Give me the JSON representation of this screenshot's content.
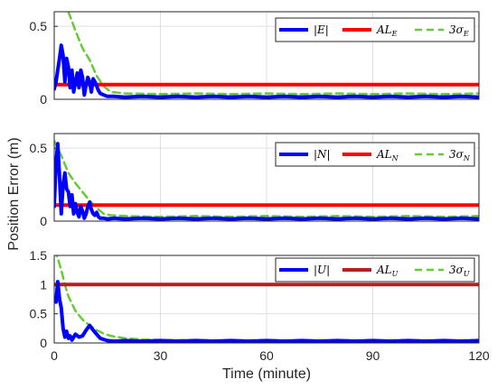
{
  "chart_data": {
    "type": "line",
    "ylabel": "Position Error (m)",
    "xlabel": "Time (minute)",
    "xlim": [
      0,
      120
    ],
    "xticks": [
      0,
      30,
      60,
      90,
      120
    ],
    "grid": true,
    "legend_position": "top-right",
    "colors": {
      "error": "#0000ff",
      "alert_limit": "#ff0000",
      "alert_limit_u": "#b22222",
      "sigma": "#66cc33"
    },
    "panels": [
      {
        "axis": "E",
        "ylim": [
          0,
          0.6
        ],
        "yticks": [
          0,
          0.5
        ],
        "ytick_labels": [
          "0",
          "0.5"
        ],
        "legend": [
          {
            "main": "|E|",
            "sub": "",
            "style": "error"
          },
          {
            "main": "AL",
            "sub": "E",
            "style": "alert_limit"
          },
          {
            "main": "3σ",
            "sub": "E",
            "style": "sigma"
          }
        ],
        "series": [
          {
            "role": "error",
            "x": [
              0,
              0.5,
              1,
              1.5,
              2,
              2.5,
              3,
              3.5,
              4,
              4.5,
              5,
              5.5,
              6,
              6.5,
              7,
              7.5,
              8,
              8.5,
              9,
              9.5,
              10,
              10.5,
              11,
              11.5,
              12,
              12.5,
              13,
              14,
              15,
              17,
              20,
              25,
              30,
              35,
              40,
              45,
              50,
              55,
              60,
              65,
              70,
              75,
              80,
              85,
              90,
              95,
              100,
              105,
              110,
              115,
              120
            ],
            "y": [
              0.07,
              0.12,
              0.2,
              0.28,
              0.37,
              0.3,
              0.12,
              0.28,
              0.22,
              0.08,
              0.2,
              0.05,
              0.12,
              0.18,
              0.08,
              0.2,
              0.15,
              0.03,
              0.1,
              0.15,
              0.12,
              0.05,
              0.14,
              0.12,
              0.09,
              0.06,
              0.04,
              0.03,
              0.02,
              0.02,
              0.015,
              0.02,
              0.015,
              0.02,
              0.015,
              0.02,
              0.015,
              0.02,
              0.015,
              0.02,
              0.015,
              0.02,
              0.015,
              0.02,
              0.015,
              0.02,
              0.015,
              0.02,
              0.015,
              0.02,
              0.015
            ]
          },
          {
            "role": "alert_limit",
            "x": [
              0,
              120
            ],
            "y": [
              0.1,
              0.1
            ]
          },
          {
            "role": "sigma",
            "x": [
              4,
              6,
              8,
              10,
              12,
              14,
              16,
              20,
              30,
              40,
              50,
              60,
              70,
              80,
              90,
              100,
              110,
              120
            ],
            "y": [
              0.6,
              0.47,
              0.35,
              0.27,
              0.16,
              0.09,
              0.05,
              0.04,
              0.035,
              0.04,
              0.035,
              0.04,
              0.035,
              0.04,
              0.035,
              0.04,
              0.035,
              0.04
            ]
          }
        ]
      },
      {
        "axis": "N",
        "ylim": [
          0,
          0.6
        ],
        "yticks": [
          0,
          0.5
        ],
        "ytick_labels": [
          "0",
          "0.5"
        ],
        "legend": [
          {
            "main": "|N|",
            "sub": "",
            "style": "error"
          },
          {
            "main": "AL",
            "sub": "N",
            "style": "alert_limit"
          },
          {
            "main": "3σ",
            "sub": "N",
            "style": "sigma"
          }
        ],
        "series": [
          {
            "role": "error",
            "x": [
              0,
              0.5,
              1,
              1.5,
              2,
              2.5,
              3,
              3.5,
              4,
              4.5,
              5,
              5.5,
              6,
              6.5,
              7,
              7.5,
              8,
              8.5,
              9,
              9.5,
              10,
              10.5,
              11,
              11.5,
              12,
              12.5,
              13,
              14,
              15,
              17,
              20,
              25,
              30,
              35,
              40,
              45,
              50,
              55,
              60,
              65,
              70,
              75,
              80,
              85,
              90,
              95,
              100,
              105,
              110,
              115,
              120
            ],
            "y": [
              0.1,
              0.4,
              0.53,
              0.3,
              0.05,
              0.25,
              0.33,
              0.22,
              0.2,
              0.1,
              0.18,
              0.05,
              0.12,
              0.06,
              0.03,
              0.1,
              0.07,
              0.02,
              0.05,
              0.1,
              0.13,
              0.08,
              0.05,
              0.04,
              0.06,
              0.03,
              0.02,
              0.02,
              0.015,
              0.02,
              0.015,
              0.02,
              0.015,
              0.02,
              0.015,
              0.02,
              0.015,
              0.02,
              0.015,
              0.02,
              0.015,
              0.02,
              0.015,
              0.02,
              0.015,
              0.02,
              0.015,
              0.02,
              0.015,
              0.02,
              0.015
            ]
          },
          {
            "role": "alert_limit",
            "x": [
              0,
              120
            ],
            "y": [
              0.11,
              0.11
            ]
          },
          {
            "role": "sigma",
            "x": [
              0,
              2,
              4,
              6,
              8,
              10,
              12,
              14,
              16,
              20,
              30,
              40,
              50,
              60,
              70,
              80,
              90,
              100,
              110,
              120
            ],
            "y": [
              0.55,
              0.45,
              0.33,
              0.26,
              0.2,
              0.14,
              0.09,
              0.05,
              0.04,
              0.035,
              0.03,
              0.035,
              0.03,
              0.035,
              0.03,
              0.035,
              0.03,
              0.035,
              0.03,
              0.035
            ]
          }
        ]
      },
      {
        "axis": "U",
        "ylim": [
          0,
          1.5
        ],
        "yticks": [
          0,
          0.5,
          1,
          1.5
        ],
        "ytick_labels": [
          "0",
          "0.5",
          "1",
          "1.5"
        ],
        "legend": [
          {
            "main": "|U|",
            "sub": "",
            "style": "error"
          },
          {
            "main": "AL",
            "sub": "U",
            "style": "alert_limit_u"
          },
          {
            "main": "3σ",
            "sub": "U",
            "style": "sigma"
          }
        ],
        "series": [
          {
            "role": "error",
            "x": [
              0,
              0.5,
              1,
              1.5,
              2,
              2.5,
              3,
              3.5,
              4,
              4.5,
              5,
              6,
              7,
              8,
              9,
              10,
              11,
              12,
              13,
              14,
              15,
              17,
              20,
              25,
              30,
              35,
              40,
              45,
              50,
              55,
              60,
              65,
              70,
              75,
              80,
              85,
              90,
              95,
              100,
              105,
              110,
              115,
              120
            ],
            "y": [
              0.75,
              0.7,
              1.05,
              0.75,
              0.6,
              0.25,
              0.1,
              0.2,
              0.08,
              0.12,
              0.05,
              0.15,
              0.1,
              0.12,
              0.22,
              0.3,
              0.22,
              0.15,
              0.08,
              0.06,
              0.04,
              0.03,
              0.04,
              0.03,
              0.04,
              0.03,
              0.04,
              0.03,
              0.04,
              0.03,
              0.04,
              0.03,
              0.04,
              0.03,
              0.04,
              0.03,
              0.04,
              0.03,
              0.04,
              0.03,
              0.04,
              0.03,
              0.04
            ]
          },
          {
            "role": "alert_limit",
            "x": [
              0,
              120
            ],
            "y": [
              1.0,
              1.0
            ]
          },
          {
            "role": "sigma",
            "x": [
              0,
              1,
              2,
              3,
              4,
              6,
              8,
              10,
              12,
              14,
              16,
              18,
              20,
              25,
              30,
              40,
              50,
              60,
              70,
              80,
              90,
              100,
              110,
              120
            ],
            "y": [
              1.6,
              1.45,
              1.25,
              1.0,
              0.8,
              0.55,
              0.4,
              0.3,
              0.22,
              0.16,
              0.12,
              0.1,
              0.08,
              0.06,
              0.05,
              0.05,
              0.045,
              0.05,
              0.045,
              0.05,
              0.045,
              0.05,
              0.045,
              0.05
            ]
          }
        ]
      }
    ]
  }
}
